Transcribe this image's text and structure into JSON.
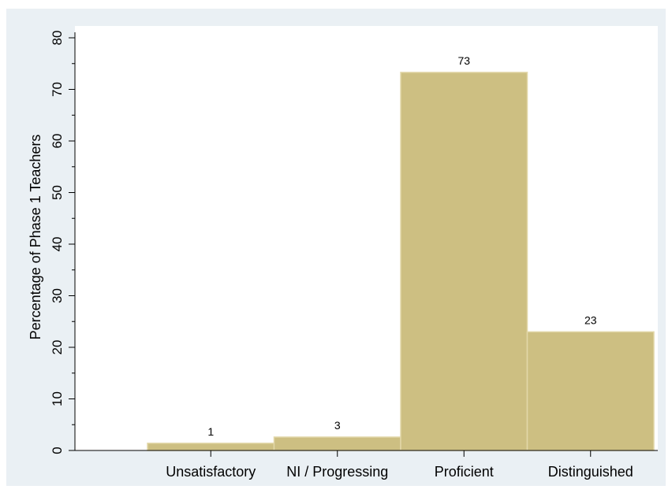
{
  "chart_data": {
    "type": "bar",
    "categories": [
      "Unsatisfactory",
      "NI / Progressing",
      "Proficient",
      "Distinguished"
    ],
    "values": [
      1.4,
      2.6,
      73.3,
      23.0
    ],
    "data_labels": [
      "1",
      "3",
      "73",
      "23"
    ],
    "title": "",
    "xlabel": "",
    "ylabel": "Percentage of Phase 1 Teachers",
    "ylim": [
      0,
      82
    ],
    "yticks": [
      0,
      10,
      20,
      30,
      40,
      50,
      60,
      70,
      80
    ],
    "grid": false,
    "legend": "none",
    "colors": {
      "bar_fill": "#cdbf82",
      "bar_stroke": "#e2d7a8",
      "plot_background": "#ffffff",
      "outer_background": "#eaf0f4",
      "axis": "#000000"
    }
  }
}
